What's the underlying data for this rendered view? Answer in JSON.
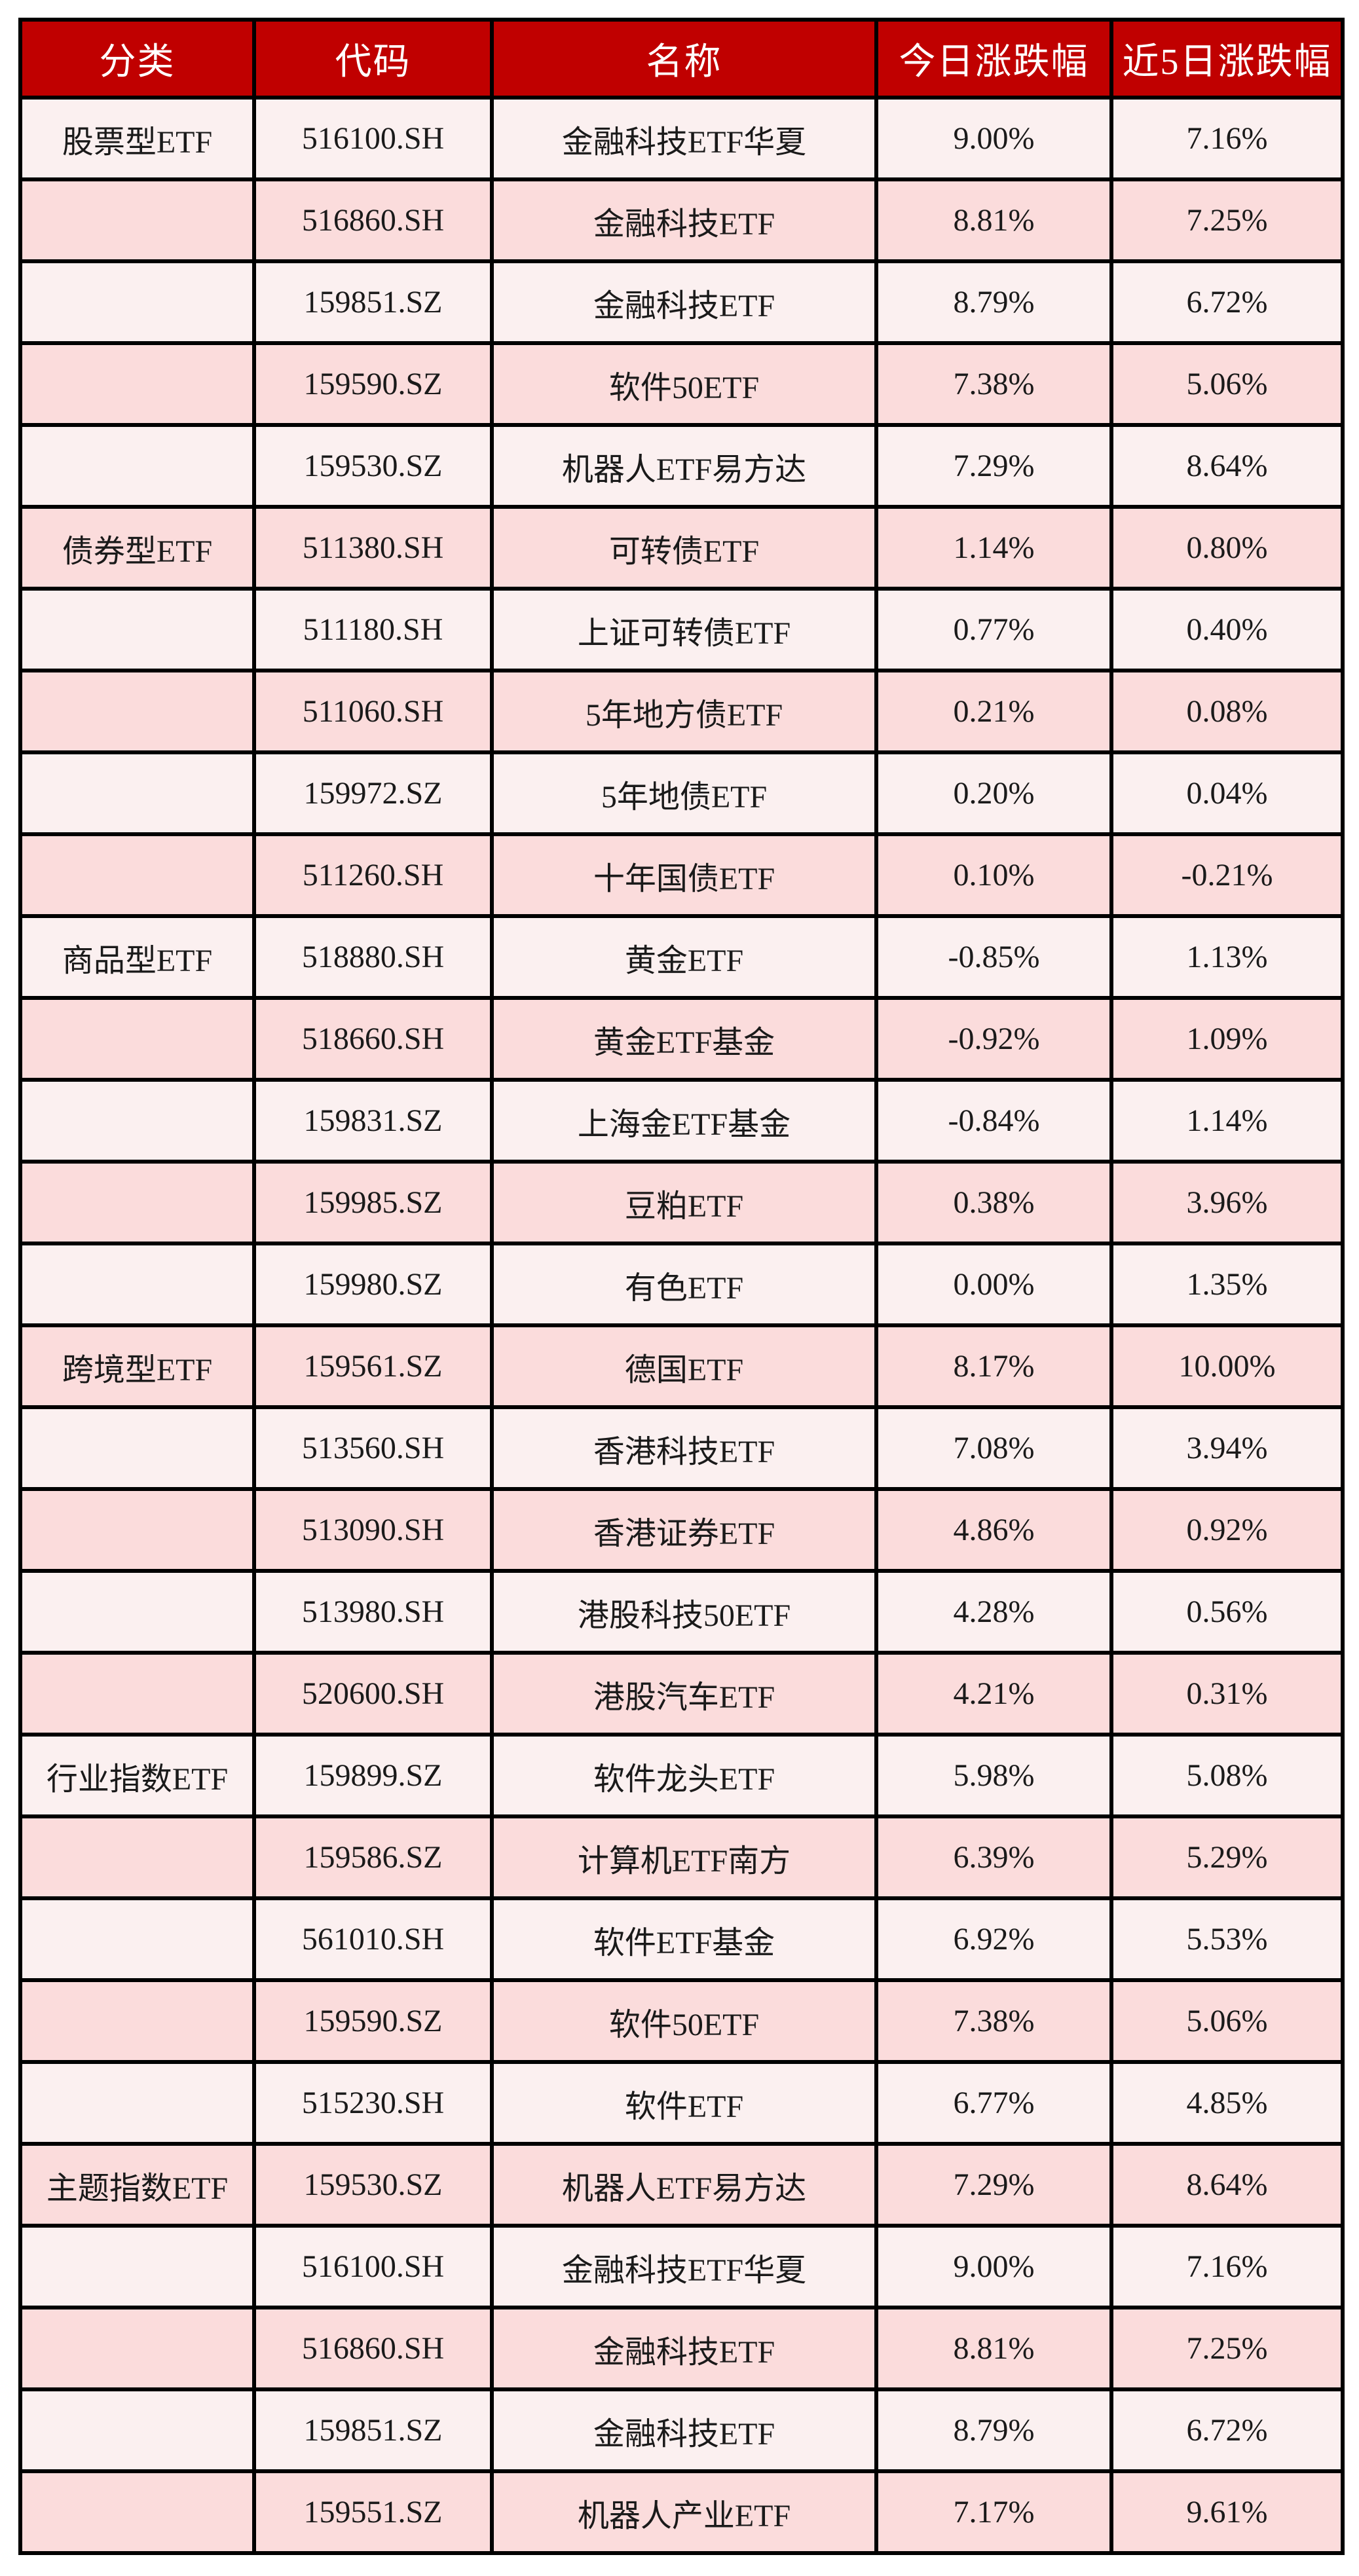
{
  "colors": {
    "header_bg": "#C00000",
    "header_text": "#FFFFFF",
    "row_light": "#FBF0F0",
    "row_dark": "#FBDCDC",
    "border": "#000000",
    "text": "#1A1A1A"
  },
  "chart_data": {
    "type": "table",
    "columns": [
      "分类",
      "代码",
      "名称",
      "今日涨跌幅",
      "近5日涨跌幅"
    ],
    "rows": [
      {
        "category": "股票型ETF",
        "code": "516100.SH",
        "name": "金融科技ETF华夏",
        "today": "9.00%",
        "five_day": "7.16%"
      },
      {
        "category": "",
        "code": "516860.SH",
        "name": "金融科技ETF",
        "today": "8.81%",
        "five_day": "7.25%"
      },
      {
        "category": "",
        "code": "159851.SZ",
        "name": "金融科技ETF",
        "today": "8.79%",
        "five_day": "6.72%"
      },
      {
        "category": "",
        "code": "159590.SZ",
        "name": "软件50ETF",
        "today": "7.38%",
        "five_day": "5.06%"
      },
      {
        "category": "",
        "code": "159530.SZ",
        "name": "机器人ETF易方达",
        "today": "7.29%",
        "five_day": "8.64%"
      },
      {
        "category": "债券型ETF",
        "code": "511380.SH",
        "name": "可转债ETF",
        "today": "1.14%",
        "five_day": "0.80%"
      },
      {
        "category": "",
        "code": "511180.SH",
        "name": "上证可转债ETF",
        "today": "0.77%",
        "five_day": "0.40%"
      },
      {
        "category": "",
        "code": "511060.SH",
        "name": "5年地方债ETF",
        "today": "0.21%",
        "five_day": "0.08%"
      },
      {
        "category": "",
        "code": "159972.SZ",
        "name": "5年地债ETF",
        "today": "0.20%",
        "five_day": "0.04%"
      },
      {
        "category": "",
        "code": "511260.SH",
        "name": "十年国债ETF",
        "today": "0.10%",
        "five_day": "-0.21%"
      },
      {
        "category": "商品型ETF",
        "code": "518880.SH",
        "name": "黄金ETF",
        "today": "-0.85%",
        "five_day": "1.13%"
      },
      {
        "category": "",
        "code": "518660.SH",
        "name": "黄金ETF基金",
        "today": "-0.92%",
        "five_day": "1.09%"
      },
      {
        "category": "",
        "code": "159831.SZ",
        "name": "上海金ETF基金",
        "today": "-0.84%",
        "five_day": "1.14%"
      },
      {
        "category": "",
        "code": "159985.SZ",
        "name": "豆粕ETF",
        "today": "0.38%",
        "five_day": "3.96%"
      },
      {
        "category": "",
        "code": "159980.SZ",
        "name": "有色ETF",
        "today": "0.00%",
        "five_day": "1.35%"
      },
      {
        "category": "跨境型ETF",
        "code": "159561.SZ",
        "name": "德国ETF",
        "today": "8.17%",
        "five_day": "10.00%"
      },
      {
        "category": "",
        "code": "513560.SH",
        "name": "香港科技ETF",
        "today": "7.08%",
        "five_day": "3.94%"
      },
      {
        "category": "",
        "code": "513090.SH",
        "name": "香港证券ETF",
        "today": "4.86%",
        "five_day": "0.92%"
      },
      {
        "category": "",
        "code": "513980.SH",
        "name": "港股科技50ETF",
        "today": "4.28%",
        "five_day": "0.56%"
      },
      {
        "category": "",
        "code": "520600.SH",
        "name": "港股汽车ETF",
        "today": "4.21%",
        "five_day": "0.31%"
      },
      {
        "category": "行业指数ETF",
        "code": "159899.SZ",
        "name": "软件龙头ETF",
        "today": "5.98%",
        "five_day": "5.08%"
      },
      {
        "category": "",
        "code": "159586.SZ",
        "name": "计算机ETF南方",
        "today": "6.39%",
        "five_day": "5.29%"
      },
      {
        "category": "",
        "code": "561010.SH",
        "name": "软件ETF基金",
        "today": "6.92%",
        "five_day": "5.53%"
      },
      {
        "category": "",
        "code": "159590.SZ",
        "name": "软件50ETF",
        "today": "7.38%",
        "five_day": "5.06%"
      },
      {
        "category": "",
        "code": "515230.SH",
        "name": "软件ETF",
        "today": "6.77%",
        "five_day": "4.85%"
      },
      {
        "category": "主题指数ETF",
        "code": "159530.SZ",
        "name": "机器人ETF易方达",
        "today": "7.29%",
        "five_day": "8.64%"
      },
      {
        "category": "",
        "code": "516100.SH",
        "name": "金融科技ETF华夏",
        "today": "9.00%",
        "five_day": "7.16%"
      },
      {
        "category": "",
        "code": "516860.SH",
        "name": "金融科技ETF",
        "today": "8.81%",
        "five_day": "7.25%"
      },
      {
        "category": "",
        "code": "159851.SZ",
        "name": "金融科技ETF",
        "today": "8.79%",
        "five_day": "6.72%"
      },
      {
        "category": "",
        "code": "159551.SZ",
        "name": "机器人产业ETF",
        "today": "7.17%",
        "five_day": "9.61%"
      }
    ]
  }
}
